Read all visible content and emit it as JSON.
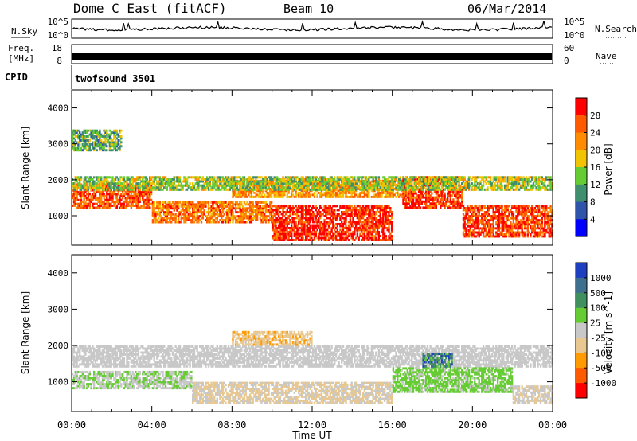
{
  "header": {
    "radar": "Dome C East (fitACF)",
    "beam": "Beam 10",
    "date": "06/Mar/2014"
  },
  "top_panels": {
    "nsky_label": "N.Sky",
    "nsearch_label": "N.Search",
    "nsky_ticks_left": [
      "10^5",
      "10^0"
    ],
    "nsky_ticks_right": [
      "10^5",
      "10^0"
    ],
    "freq_label": "Freq.",
    "freq_unit": "[MHz]",
    "freq_ticks": [
      "18",
      "8"
    ],
    "nave_label": "Nave",
    "nave_ticks": [
      "60",
      "0"
    ],
    "cpid_label": "CPID",
    "cpid_value": "twofsound 3501"
  },
  "colors": {
    "power_scale": [
      "#0000ff",
      "#2f55aa",
      "#3f8f6f",
      "#66cc33",
      "#f2c300",
      "#ff8c00",
      "#ff5a00",
      "#ff0000"
    ],
    "velocity_scale": [
      "#1e3fbf",
      "#3f6f8f",
      "#3f8f5f",
      "#66cc33",
      "#c8c8c8",
      "#e8c890",
      "#ff9a00",
      "#ff5a00",
      "#ff0000"
    ]
  },
  "chart_data": [
    {
      "type": "heatmap",
      "title": "",
      "xlabel": "",
      "ylabel": "Slant Range [km]",
      "x_ticks": [
        "00:00",
        "04:00",
        "08:00",
        "12:00",
        "16:00",
        "20:00",
        "00:00"
      ],
      "y_ticks": [
        "1000",
        "2000",
        "3000",
        "4000"
      ],
      "xlim": [
        0,
        24
      ],
      "ylim": [
        180,
        4500
      ],
      "colorbar": {
        "label": "Power [dB]",
        "ticks": [
          "28",
          "24",
          "20",
          "16",
          "12",
          "8",
          "4"
        ],
        "range": [
          0,
          32
        ]
      },
      "regions": [
        {
          "t0": 0.0,
          "t1": 4.0,
          "r0": 1200,
          "r1": 1900,
          "level": 26
        },
        {
          "t0": 4.0,
          "t1": 10.0,
          "r0": 800,
          "r1": 1400,
          "level": 24
        },
        {
          "t0": 10.0,
          "t1": 16.0,
          "r0": 300,
          "r1": 1300,
          "level": 29
        },
        {
          "t0": 8.0,
          "t1": 17.0,
          "r0": 1500,
          "r1": 2000,
          "level": 22
        },
        {
          "t0": 16.5,
          "t1": 19.5,
          "r0": 1200,
          "r1": 2100,
          "level": 28
        },
        {
          "t0": 19.5,
          "t1": 24.0,
          "r0": 400,
          "r1": 1300,
          "level": 27
        },
        {
          "t0": 0.0,
          "t1": 24.0,
          "r0": 1700,
          "r1": 2100,
          "level": 15
        },
        {
          "t0": 0.0,
          "t1": 2.5,
          "r0": 2800,
          "r1": 3400,
          "level": 12
        }
      ]
    },
    {
      "type": "heatmap",
      "title": "",
      "xlabel": "Time UT",
      "ylabel": "Slant Range [km]",
      "x_ticks": [
        "00:00",
        "04:00",
        "08:00",
        "12:00",
        "16:00",
        "20:00",
        "00:00"
      ],
      "y_ticks": [
        "1000",
        "2000",
        "3000",
        "4000"
      ],
      "xlim": [
        0,
        24
      ],
      "ylim": [
        180,
        4500
      ],
      "colorbar": {
        "label": "Velocity [m s^-1]",
        "ticks": [
          "1000",
          "500",
          "100",
          "25",
          "-25",
          "-100",
          "-500",
          "-1000"
        ],
        "range": [
          -1200,
          1200
        ]
      },
      "regions": [
        {
          "t0": 0.0,
          "t1": 24.0,
          "r0": 1400,
          "r1": 2000,
          "level": 0
        },
        {
          "t0": 0.0,
          "t1": 6.0,
          "r0": 800,
          "r1": 1300,
          "level": 120
        },
        {
          "t0": 6.0,
          "t1": 16.0,
          "r0": 400,
          "r1": 1000,
          "level": -150
        },
        {
          "t0": 16.0,
          "t1": 22.0,
          "r0": 700,
          "r1": 1400,
          "level": 200
        },
        {
          "t0": 22.0,
          "t1": 24.0,
          "r0": 400,
          "r1": 900,
          "level": -120
        },
        {
          "t0": 8.0,
          "t1": 12.0,
          "r0": 2000,
          "r1": 2400,
          "level": -300
        },
        {
          "t0": 17.5,
          "t1": 19.0,
          "r0": 1400,
          "r1": 1800,
          "level": 700
        }
      ]
    }
  ]
}
